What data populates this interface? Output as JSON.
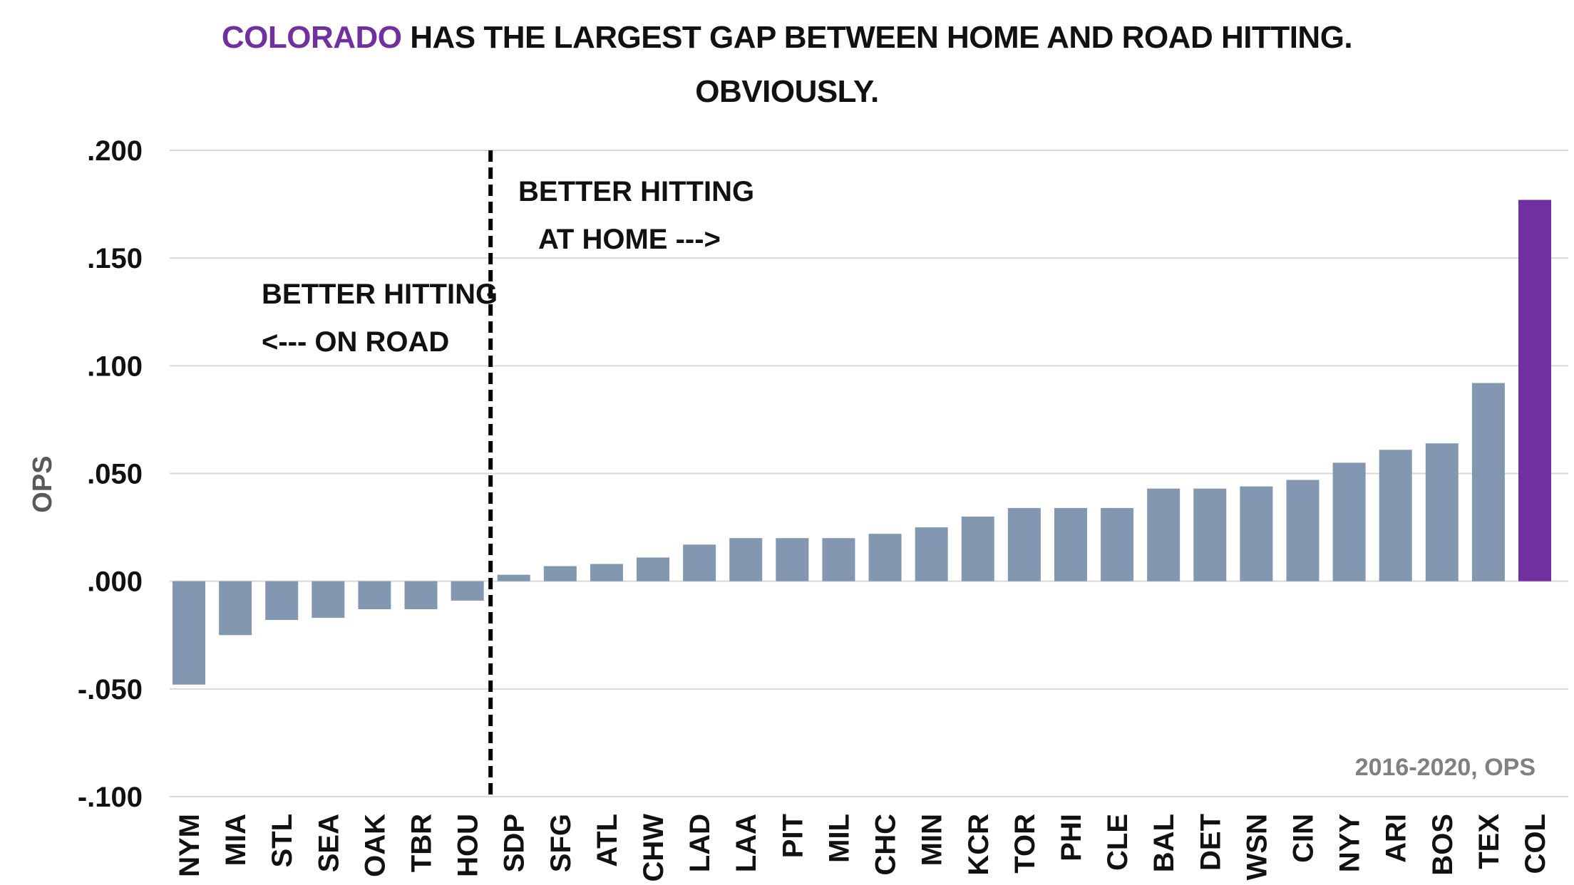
{
  "title": {
    "highlight": "COLORADO",
    "rest": " HAS THE LARGEST GAP BETWEEN HOME AND ROAD HITTING.",
    "line2": "OBVIOUSLY."
  },
  "annotations": {
    "home_line1": "BETTER HITTING",
    "home_line2": "AT HOME --->",
    "road_line1": "BETTER HITTING",
    "road_line2": "<--- ON ROAD",
    "source_note": "2016-2020, OPS"
  },
  "colors": {
    "bar": "#8497b0",
    "highlight": "#7030a0",
    "grid": "#d9d9d9",
    "text": "#111111",
    "axis_title": "#595959",
    "note": "#808080"
  },
  "chart_data": {
    "type": "bar",
    "title": "COLORADO HAS THE LARGEST GAP BETWEEN HOME AND ROAD HITTING. OBVIOUSLY.",
    "xlabel": "",
    "ylabel": "OPS",
    "ylim": [
      -0.1,
      0.2
    ],
    "yticks": [
      -0.1,
      -0.05,
      0.0,
      0.05,
      0.1,
      0.15,
      0.2
    ],
    "ytick_labels": [
      "-.100",
      "-.050",
      ".000",
      ".050",
      ".100",
      ".150",
      ".200"
    ],
    "grid": true,
    "highlight_category": "COL",
    "categories": [
      "NYM",
      "MIA",
      "STL",
      "SEA",
      "OAK",
      "TBR",
      "HOU",
      "SDP",
      "SFG",
      "ATL",
      "CHW",
      "LAD",
      "LAA",
      "PIT",
      "MIL",
      "CHC",
      "MIN",
      "KCR",
      "TOR",
      "PHI",
      "CLE",
      "BAL",
      "DET",
      "WSN",
      "CIN",
      "NYY",
      "ARI",
      "BOS",
      "TEX",
      "COL"
    ],
    "values": [
      -0.048,
      -0.025,
      -0.018,
      -0.017,
      -0.013,
      -0.013,
      -0.009,
      0.003,
      0.007,
      0.008,
      0.011,
      0.017,
      0.02,
      0.02,
      0.02,
      0.022,
      0.025,
      0.03,
      0.034,
      0.034,
      0.034,
      0.043,
      0.043,
      0.044,
      0.047,
      0.055,
      0.061,
      0.064,
      0.092,
      0.177
    ]
  }
}
